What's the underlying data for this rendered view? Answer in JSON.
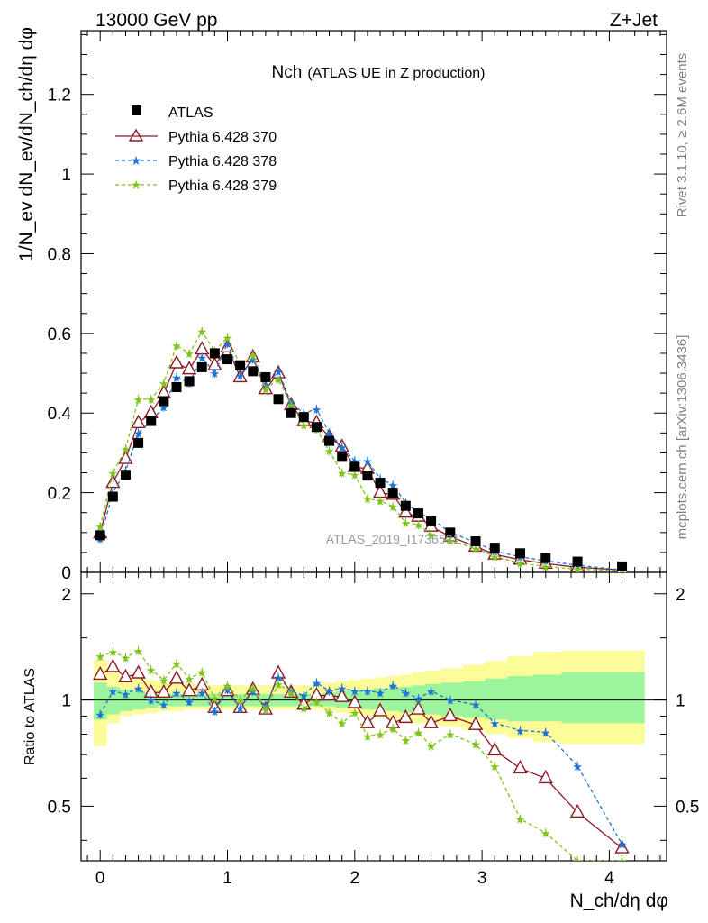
{
  "header": {
    "left": "13000 GeV pp",
    "right": "Z+Jet"
  },
  "side": {
    "rivet": "Rivet 3.1.10, ≥ 2.6M events",
    "mcplots": "mcplots.cern.ch [arXiv:1306.3436]"
  },
  "watermark": "ATLAS_2019_I1736531",
  "chart_data": {
    "type": "scatter",
    "title_main": "Nch",
    "title_sub": "(ATLAS UE in Z production)",
    "ylabel": "1/N_ev dN_ev/dN_ch/dη dφ",
    "xlabel": "N_ch/dη dφ",
    "ratio_ylabel": "Ratio to ATLAS",
    "xlim": [
      -0.15,
      4.45
    ],
    "ylim": [
      0,
      1.36
    ],
    "ratio_ylim": [
      0.35,
      2.3
    ],
    "ratio_log": true,
    "x_ticks": [
      "0",
      "1",
      "2",
      "3",
      "4"
    ],
    "y_ticks": [
      "0",
      "0.2",
      "0.4",
      "0.6",
      "0.8",
      "1",
      "1.2"
    ],
    "ratio_ticks": [
      "0.5",
      "1",
      "2"
    ],
    "legend": [
      "ATLAS",
      "Pythia 6.428 370",
      "Pythia 6.428 378",
      "Pythia 6.428 379"
    ],
    "colors": {
      "data": "#000000",
      "p370": "#8b1a24",
      "p378": "#1e73d6",
      "p379": "#7fc31c",
      "band_inner": "#9cf59c",
      "band_outer": "#fbfb98"
    },
    "x": [
      0,
      0.1,
      0.2,
      0.3,
      0.4,
      0.5,
      0.6,
      0.7,
      0.8,
      0.9,
      1.0,
      1.1,
      1.2,
      1.3,
      1.4,
      1.5,
      1.6,
      1.7,
      1.8,
      1.9,
      2.0,
      2.1,
      2.2,
      2.3,
      2.4,
      2.5,
      2.6,
      2.75,
      2.95,
      3.1,
      3.3,
      3.5,
      3.75,
      4.1
    ],
    "atlas": [
      0.093,
      0.19,
      0.245,
      0.325,
      0.38,
      0.43,
      0.465,
      0.48,
      0.515,
      0.55,
      0.535,
      0.52,
      0.505,
      0.49,
      0.435,
      0.4,
      0.39,
      0.365,
      0.33,
      0.29,
      0.265,
      0.243,
      0.225,
      0.2,
      0.167,
      0.148,
      0.128,
      0.1,
      0.078,
      0.062,
      0.048,
      0.036,
      0.027,
      0.015
    ],
    "series": [
      {
        "name": "Pythia 6.428 370",
        "values": [
          0.098,
          0.225,
          0.285,
          0.375,
          0.4,
          0.45,
          0.525,
          0.51,
          0.56,
          0.52,
          0.565,
          0.49,
          0.54,
          0.46,
          0.5,
          0.42,
          0.38,
          0.375,
          0.34,
          0.315,
          0.265,
          0.26,
          0.2,
          0.195,
          0.15,
          0.14,
          0.115,
          0.09,
          0.065,
          0.045,
          0.032,
          0.022,
          0.013,
          0.006
        ]
      },
      {
        "name": "Pythia 6.428 378",
        "values": [
          0.085,
          0.2,
          0.255,
          0.35,
          0.38,
          0.415,
          0.49,
          0.475,
          0.54,
          0.5,
          0.575,
          0.495,
          0.535,
          0.47,
          0.505,
          0.425,
          0.4,
          0.41,
          0.35,
          0.315,
          0.28,
          0.28,
          0.235,
          0.22,
          0.175,
          0.15,
          0.135,
          0.1,
          0.076,
          0.053,
          0.039,
          0.029,
          0.018,
          0.006
        ]
      },
      {
        "name": "Pythia 6.428 379",
        "values": [
          0.115,
          0.25,
          0.31,
          0.435,
          0.435,
          0.475,
          0.57,
          0.55,
          0.605,
          0.555,
          0.59,
          0.52,
          0.545,
          0.46,
          0.485,
          0.42,
          0.37,
          0.36,
          0.305,
          0.25,
          0.245,
          0.185,
          0.18,
          0.165,
          0.125,
          0.12,
          0.095,
          0.08,
          0.06,
          0.04,
          0.023,
          0.015,
          0.008,
          0.004
        ]
      }
    ],
    "ratios": [
      {
        "name": "Pythia 6.428 370",
        "values": [
          1.18,
          1.24,
          1.16,
          1.19,
          1.05,
          1.05,
          1.15,
          1.06,
          1.1,
          0.95,
          1.06,
          0.95,
          1.07,
          0.94,
          1.19,
          1.05,
          0.97,
          1.03,
          1.03,
          1.02,
          0.98,
          0.86,
          0.93,
          0.86,
          0.89,
          0.94,
          0.86,
          0.9,
          0.85,
          0.72,
          0.64,
          0.6,
          0.48,
          0.38
        ]
      },
      {
        "name": "Pythia 6.428 378",
        "values": [
          0.91,
          1.06,
          1.04,
          1.08,
          1.0,
          0.97,
          1.05,
          0.99,
          1.05,
          0.93,
          1.07,
          0.95,
          1.06,
          0.96,
          1.16,
          1.06,
          1.03,
          1.12,
          1.06,
          1.08,
          1.06,
          1.06,
          1.05,
          1.1,
          1.05,
          1.01,
          1.06,
          1.0,
          0.97,
          0.86,
          0.82,
          0.81,
          0.65,
          0.39
        ]
      },
      {
        "name": "Pythia 6.428 379",
        "values": [
          1.33,
          1.37,
          1.32,
          1.38,
          1.22,
          1.14,
          1.27,
          1.15,
          1.2,
          1.01,
          1.1,
          1.0,
          1.08,
          0.94,
          1.11,
          1.05,
          0.95,
          0.99,
          0.92,
          0.86,
          0.92,
          0.79,
          0.8,
          0.83,
          0.77,
          0.81,
          0.74,
          0.8,
          0.75,
          0.65,
          0.46,
          0.42,
          0.3,
          0.27
        ]
      }
    ],
    "band_inner": [
      [
        0.88,
        1.12
      ],
      [
        0.91,
        1.09
      ],
      [
        0.93,
        1.07
      ],
      [
        0.94,
        1.06
      ],
      [
        0.95,
        1.05
      ],
      [
        0.96,
        1.04
      ],
      [
        0.96,
        1.04
      ],
      [
        0.96,
        1.04
      ],
      [
        0.96,
        1.04
      ],
      [
        0.96,
        1.04
      ],
      [
        0.96,
        1.04
      ],
      [
        0.96,
        1.04
      ],
      [
        0.96,
        1.04
      ],
      [
        0.96,
        1.04
      ],
      [
        0.96,
        1.04
      ],
      [
        0.96,
        1.04
      ],
      [
        0.96,
        1.04
      ],
      [
        0.96,
        1.04
      ],
      [
        0.96,
        1.05
      ],
      [
        0.95,
        1.06
      ],
      [
        0.95,
        1.06
      ],
      [
        0.94,
        1.07
      ],
      [
        0.94,
        1.08
      ],
      [
        0.93,
        1.08
      ],
      [
        0.92,
        1.09
      ],
      [
        0.92,
        1.1
      ],
      [
        0.91,
        1.11
      ],
      [
        0.9,
        1.12
      ],
      [
        0.89,
        1.13
      ],
      [
        0.88,
        1.15
      ],
      [
        0.87,
        1.17
      ],
      [
        0.87,
        1.18
      ],
      [
        0.86,
        1.2
      ],
      [
        0.86,
        1.2
      ]
    ],
    "band_outer": [
      [
        0.74,
        1.3
      ],
      [
        0.86,
        1.2
      ],
      [
        0.9,
        1.16
      ],
      [
        0.91,
        1.15
      ],
      [
        0.92,
        1.14
      ],
      [
        0.93,
        1.12
      ],
      [
        0.93,
        1.12
      ],
      [
        0.94,
        1.11
      ],
      [
        0.94,
        1.1
      ],
      [
        0.94,
        1.1
      ],
      [
        0.94,
        1.1
      ],
      [
        0.94,
        1.1
      ],
      [
        0.94,
        1.1
      ],
      [
        0.94,
        1.1
      ],
      [
        0.94,
        1.1
      ],
      [
        0.94,
        1.1
      ],
      [
        0.94,
        1.1
      ],
      [
        0.94,
        1.1
      ],
      [
        0.93,
        1.12
      ],
      [
        0.92,
        1.13
      ],
      [
        0.91,
        1.14
      ],
      [
        0.9,
        1.15
      ],
      [
        0.89,
        1.16
      ],
      [
        0.88,
        1.17
      ],
      [
        0.87,
        1.18
      ],
      [
        0.86,
        1.2
      ],
      [
        0.85,
        1.21
      ],
      [
        0.84,
        1.23
      ],
      [
        0.82,
        1.26
      ],
      [
        0.8,
        1.29
      ],
      [
        0.78,
        1.33
      ],
      [
        0.76,
        1.37
      ],
      [
        0.75,
        1.38
      ],
      [
        0.75,
        1.38
      ]
    ],
    "ratio_ref": 1
  }
}
